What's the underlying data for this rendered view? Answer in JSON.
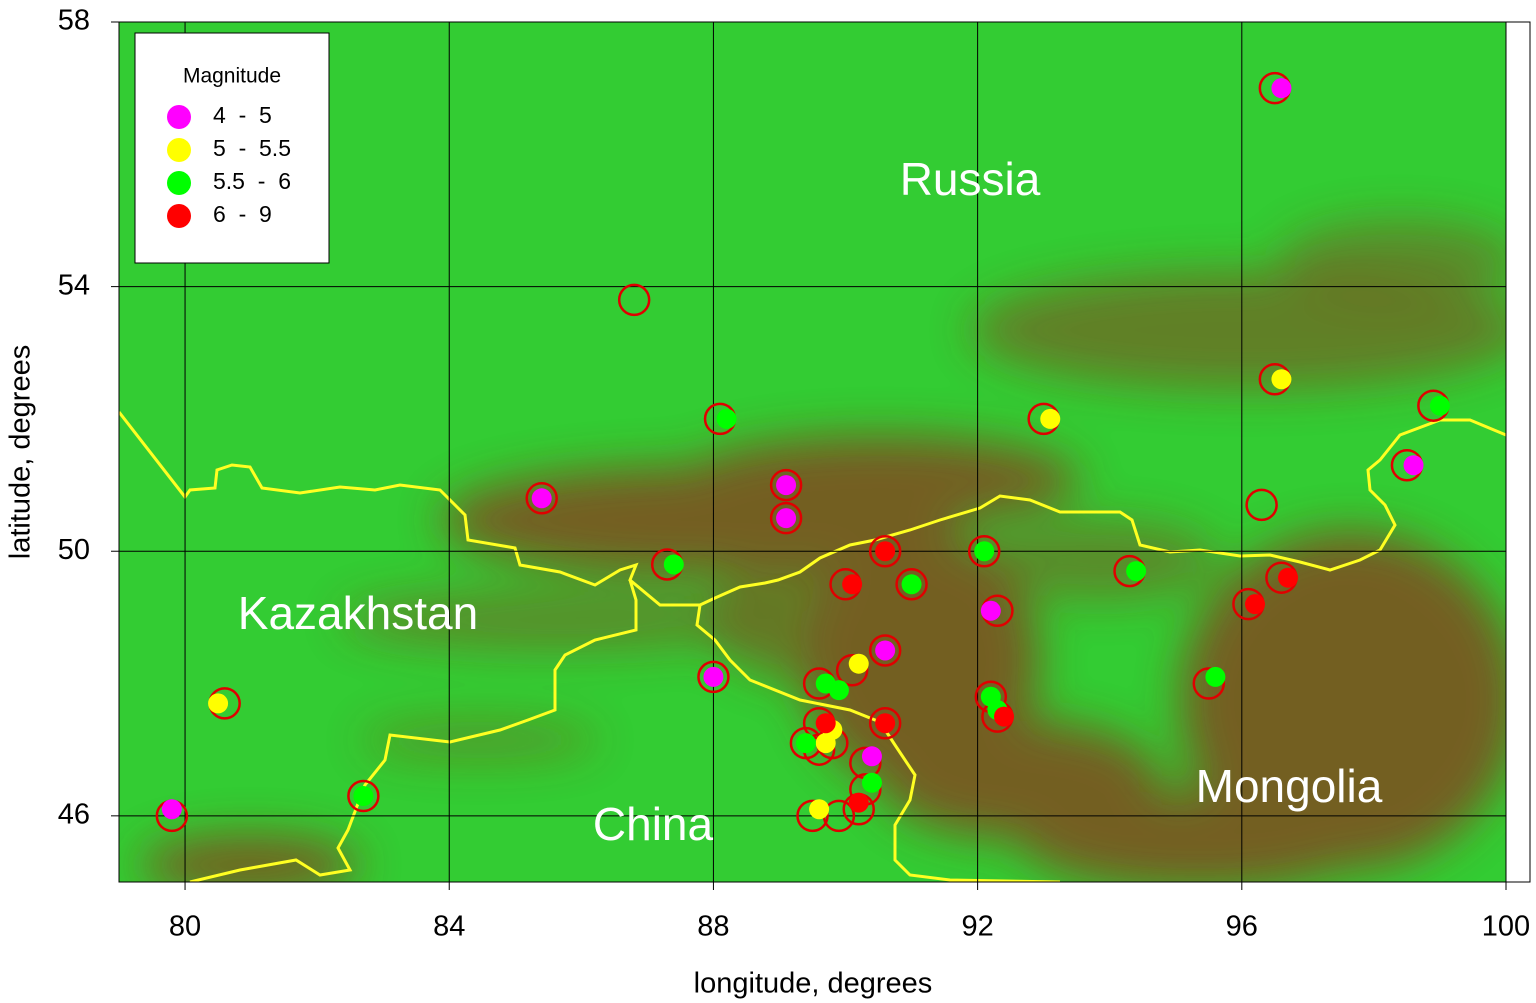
{
  "chart_data": {
    "type": "scatter",
    "xlabel": "longitude, degrees",
    "ylabel": "latitude, degrees",
    "xlim": [
      79,
      100
    ],
    "ylim": [
      45,
      58
    ],
    "xticks": [
      80,
      84,
      88,
      92,
      96,
      100
    ],
    "yticks": [
      46,
      50,
      54,
      58
    ],
    "grid": true,
    "legend_title": "Magnitude",
    "legend_position": "upper left",
    "annotations": [
      "Russia",
      "Kazakhstan",
      "China",
      "Mongolia"
    ],
    "series": [
      {
        "color": "#e00000",
        "marker": "open",
        "x": [
          96.5,
          86.8,
          96.5,
          93.0,
          98.9,
          88.1,
          85.4,
          89.1,
          89.1,
          98.5,
          96.3,
          87.3,
          90.6,
          92.1,
          90.0,
          91.0,
          94.3,
          96.6,
          96.1,
          92.3,
          90.6,
          90.1,
          88.0,
          95.5,
          89.6,
          92.2,
          92.3,
          89.6,
          90.6,
          89.4,
          89.8,
          89.6,
          90.3,
          80.6,
          82.7,
          79.8,
          89.5,
          89.9,
          90.2,
          90.3
        ],
        "y": [
          57.0,
          53.8,
          52.6,
          52.0,
          52.2,
          52.0,
          50.8,
          51.0,
          50.5,
          51.3,
          50.7,
          49.8,
          50.0,
          50.0,
          49.5,
          49.5,
          49.7,
          49.6,
          49.2,
          49.1,
          48.5,
          48.2,
          48.1,
          48.0,
          48.0,
          47.8,
          47.5,
          47.4,
          47.4,
          47.1,
          47.1,
          47.0,
          46.8,
          47.7,
          46.3,
          46.0,
          46.0,
          46.0,
          46.1,
          46.4
        ]
      },
      {
        "name": "4  -  5",
        "color": "#ff00ff",
        "marker": "filled",
        "x": [
          96.6,
          85.4,
          89.1,
          89.1,
          98.6,
          92.2,
          90.6,
          88.0,
          90.4,
          79.8
        ],
        "y": [
          57.0,
          50.8,
          51.0,
          50.5,
          51.3,
          49.1,
          48.5,
          48.1,
          46.9,
          46.1
        ]
      },
      {
        "name": "5  -  5.5",
        "color": "#ffff00",
        "marker": "filled",
        "x": [
          96.6,
          93.1,
          80.5,
          90.2,
          89.8,
          89.7,
          89.6
        ],
        "y": [
          52.6,
          52.0,
          47.7,
          48.3,
          47.3,
          47.1,
          46.1
        ]
      },
      {
        "name": "5.5  -  6",
        "color": "#00ff00",
        "marker": "filled",
        "x": [
          99.0,
          88.2,
          87.4,
          92.1,
          91.0,
          94.4,
          95.6,
          89.7,
          89.9,
          92.2,
          92.3,
          89.4,
          90.4,
          82.7
        ],
        "y": [
          52.2,
          52.0,
          49.8,
          50.0,
          49.5,
          49.7,
          48.1,
          48.0,
          47.9,
          47.8,
          47.6,
          47.1,
          46.5,
          46.3
        ]
      },
      {
        "name": "6  -  9",
        "color": "#ff0000",
        "marker": "filled",
        "x": [
          90.6,
          90.1,
          96.7,
          96.2,
          89.7,
          90.6,
          90.2,
          92.4
        ],
        "y": [
          50.0,
          49.5,
          49.6,
          49.2,
          47.4,
          47.4,
          46.2,
          47.5
        ]
      }
    ]
  }
}
